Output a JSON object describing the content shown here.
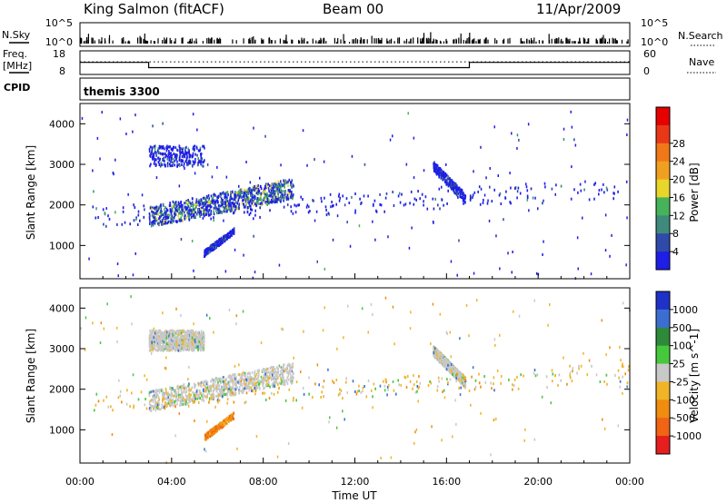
{
  "header": {
    "station": "King Salmon (fitACF)",
    "beam": "Beam 00",
    "date": "11/Apr/2009"
  },
  "noise_panel": {
    "left_label": "N.Sky",
    "right_label": "N.Search",
    "left_ticks": [
      "10^5",
      "10^0"
    ],
    "right_ticks": [
      "10^5",
      "10^0"
    ]
  },
  "freq_panel": {
    "left_label_1": "Freq.",
    "left_label_2": "[MHz]",
    "right_label": "Nave",
    "left_ticks": [
      "18",
      "8"
    ],
    "right_ticks": [
      "60",
      "0"
    ],
    "series": [
      {
        "x": [
          0,
          3.0,
          3.0,
          17.0,
          17.0,
          24
        ],
        "freq": [
          13.1,
          13.1,
          10.9,
          10.9,
          13.1,
          13.1
        ]
      }
    ],
    "nave_level": 32
  },
  "cpid_panel": {
    "label": "CPID",
    "program": "themis 3300"
  },
  "chart_data": [
    {
      "type": "heatmap",
      "name": "power",
      "ylabel": "Slant Range [km]",
      "ylim": [
        180,
        4500
      ],
      "yticks": [
        "1000",
        "2000",
        "3000",
        "4000"
      ],
      "colorbar": {
        "label": "Power [dB]",
        "ticks": [
          "4",
          "8",
          "12",
          "16",
          "20",
          "24",
          "28"
        ],
        "colors": [
          "#1e1ee6",
          "#2f4aa8",
          "#3f8a7c",
          "#46b35a",
          "#e8d62a",
          "#f0a020",
          "#f07818",
          "#e83818",
          "#e60000"
        ]
      },
      "regions": [
        {
          "t0": 3.0,
          "t1": 9.3,
          "r0": 1500,
          "r1": 2800,
          "level": "strong"
        },
        {
          "t0": 3.0,
          "t1": 5.4,
          "r0": 2950,
          "r1": 3450,
          "level": "weak"
        },
        {
          "t0": 5.4,
          "t1": 6.7,
          "r0": 750,
          "r1": 1400,
          "level": "weak"
        },
        {
          "t0": 15.4,
          "t1": 16.8,
          "r0": 2100,
          "r1": 3000,
          "level": "weak"
        },
        {
          "t0": 0.5,
          "t1": 24,
          "r0": 180,
          "r1": 400,
          "level": "weak"
        }
      ]
    },
    {
      "type": "heatmap",
      "name": "velocity",
      "ylabel": "Slant Range [km]",
      "ylim": [
        180,
        4500
      ],
      "yticks": [
        "1000",
        "2000",
        "3000",
        "4000"
      ],
      "xlabel": "Time UT",
      "xticks": [
        "00:00",
        "04:00",
        "08:00",
        "12:00",
        "16:00",
        "20:00",
        "00:00"
      ],
      "colorbar": {
        "label": "Velocity [m s^-1]",
        "ticks": [
          "1000",
          "500",
          "100",
          "25",
          "-25",
          "-100",
          "-500",
          "-1000"
        ],
        "colors": [
          "#1e32c8",
          "#3c6ed2",
          "#2e8a3a",
          "#46c83c",
          "#c8c8c8",
          "#f0b428",
          "#f08c10",
          "#f06414",
          "#e61e1e"
        ]
      },
      "regions": [
        {
          "t0": 3.0,
          "t1": 9.3,
          "r0": 1500,
          "r1": 2800,
          "level": "near-zero"
        },
        {
          "t0": 3.0,
          "t1": 5.4,
          "r0": 2950,
          "r1": 3450,
          "level": "near-zero"
        },
        {
          "t0": 5.4,
          "t1": 6.7,
          "r0": 750,
          "r1": 1400,
          "level": "negative"
        },
        {
          "t0": 15.4,
          "t1": 16.8,
          "r0": 2100,
          "r1": 3000,
          "level": "near-zero"
        },
        {
          "t0": 0.5,
          "t1": 24,
          "r0": 180,
          "r1": 400,
          "level": "mixed"
        }
      ]
    }
  ]
}
